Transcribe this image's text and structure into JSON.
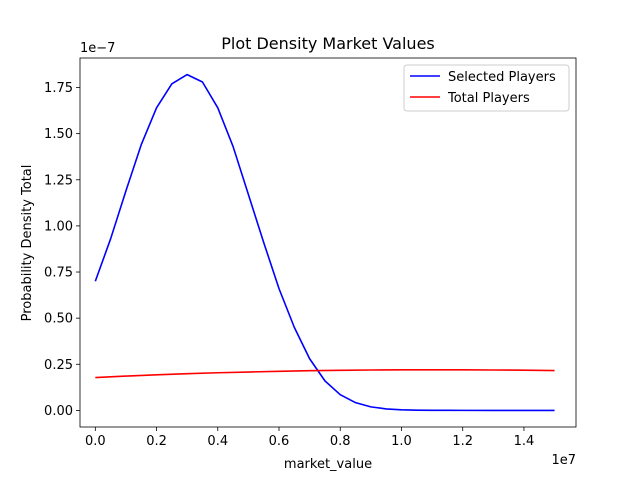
{
  "chart_data": {
    "type": "line",
    "title": "Plot Density  Market Values",
    "xlabel": "market_value",
    "ylabel": "Probability Density Total",
    "x_offset_label": "1e7",
    "y_offset_label": "1e−7",
    "xlim": [
      -0.05,
      1.57
    ],
    "ylim": [
      -0.09,
      1.91
    ],
    "x_ticks": [
      0.0,
      0.2,
      0.4,
      0.6,
      0.8,
      1.0,
      1.2,
      1.4
    ],
    "x_tick_labels": [
      "0.0",
      "0.2",
      "0.4",
      "0.6",
      "0.8",
      "1.0",
      "1.2",
      "1.4"
    ],
    "y_ticks": [
      0.0,
      0.25,
      0.5,
      0.75,
      1.0,
      1.25,
      1.5,
      1.75
    ],
    "y_tick_labels": [
      "0.00",
      "0.25",
      "0.50",
      "0.75",
      "1.00",
      "1.25",
      "1.50",
      "1.75"
    ],
    "grid": false,
    "legend_position": "top-right",
    "series": [
      {
        "name": "Selected Players",
        "color": "#0000ff",
        "x": [
          0.0,
          0.05,
          0.1,
          0.15,
          0.2,
          0.25,
          0.3,
          0.35,
          0.4,
          0.45,
          0.5,
          0.55,
          0.6,
          0.65,
          0.7,
          0.75,
          0.8,
          0.85,
          0.9,
          0.95,
          1.0,
          1.05,
          1.1,
          1.15,
          1.2,
          1.3,
          1.4,
          1.5
        ],
        "y": [
          0.7,
          0.93,
          1.19,
          1.44,
          1.64,
          1.77,
          1.82,
          1.78,
          1.64,
          1.43,
          1.17,
          0.91,
          0.66,
          0.45,
          0.28,
          0.16,
          0.085,
          0.042,
          0.019,
          0.008,
          0.003,
          0.001,
          0.0005,
          0.0002,
          0.0001,
          0.0,
          0.0,
          0.0
        ]
      },
      {
        "name": "Total Players",
        "color": "#ff0000",
        "x": [
          0.0,
          0.1,
          0.2,
          0.3,
          0.4,
          0.5,
          0.6,
          0.7,
          0.8,
          0.9,
          1.0,
          1.1,
          1.2,
          1.3,
          1.4,
          1.5
        ],
        "y": [
          0.178,
          0.186,
          0.193,
          0.199,
          0.204,
          0.208,
          0.212,
          0.215,
          0.217,
          0.219,
          0.22,
          0.22,
          0.22,
          0.219,
          0.218,
          0.216
        ]
      }
    ]
  }
}
